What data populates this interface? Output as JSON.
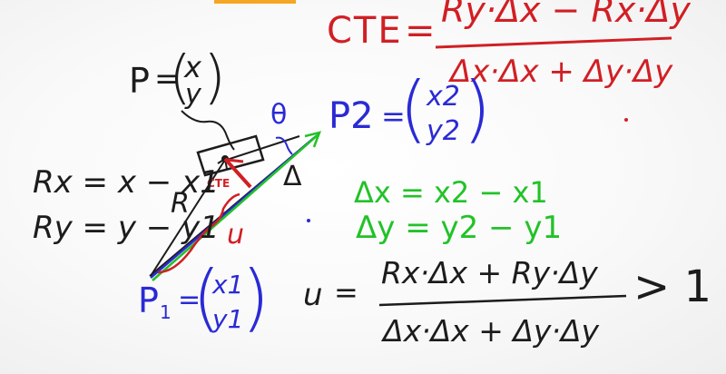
{
  "colors": {
    "black": "#1c1c1c",
    "red": "#d11f24",
    "green": "#22c228",
    "blue": "#2a2ad6"
  },
  "cte_formula": {
    "lhs": "CTE",
    "equals": "=",
    "numerator": "Ry·Δx − Rx·Δy",
    "denominator": "Δx·Δx + Δy·Δy"
  },
  "point_p": {
    "label": "P",
    "equals": "=",
    "x": "x",
    "y": "y"
  },
  "point_p1": {
    "label": "P",
    "subscript": "1",
    "equals": "=",
    "x": "x1",
    "y": "y1"
  },
  "point_p2": {
    "label": "P2",
    "equals": "=",
    "x": "x2",
    "y": "y2"
  },
  "diagram_labels": {
    "theta": "θ",
    "delta": "Δ",
    "r": "R",
    "u": "u",
    "cte_small": "CTE"
  },
  "r_components": {
    "rx": "Rx = x − x1",
    "ry": "Ry = y − y1"
  },
  "deltas": {
    "dx": "Δx = x2 − x1",
    "dy": "Δy = y2 − y1"
  },
  "u_formula": {
    "lhs": "u",
    "equals": "=",
    "numerator": "Rx·Δx + Ry·Δy",
    "denominator": "Δx·Δx + Δy·Δy",
    "comparison": "> 1"
  }
}
